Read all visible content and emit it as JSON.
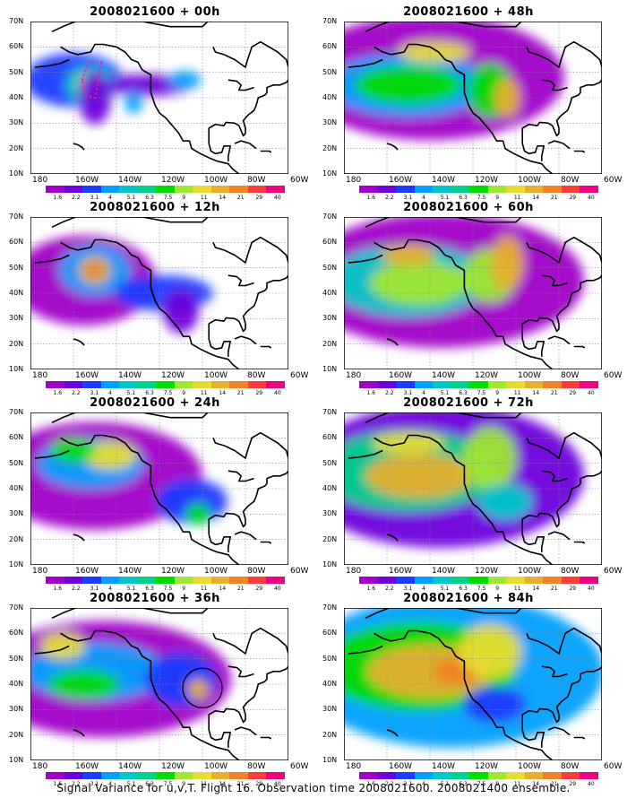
{
  "panels": [
    {
      "title": "2008021600 + 00h"
    },
    {
      "title": "2008021600 + 48h"
    },
    {
      "title": "2008021600 + 12h"
    },
    {
      "title": "2008021600 + 60h"
    },
    {
      "title": "2008021600 + 24h"
    },
    {
      "title": "2008021600 + 72h"
    },
    {
      "title": "2008021600 + 36h"
    },
    {
      "title": "2008021600 + 84h"
    }
  ],
  "axes": {
    "lat_labels": [
      "70N",
      "60N",
      "50N",
      "40N",
      "30N",
      "20N",
      "10N"
    ],
    "lon_labels": [
      "180",
      "160W",
      "140W",
      "120W",
      "100W",
      "80W",
      "60W"
    ]
  },
  "colorbar": {
    "colors": [
      "#a000c8",
      "#6e00dc",
      "#1e3cff",
      "#00a0ff",
      "#00c8c8",
      "#00d28c",
      "#00dc00",
      "#a0e632",
      "#e6dc32",
      "#e6af2d",
      "#f08228",
      "#fa3c3c",
      "#f00082"
    ],
    "labels": [
      "1.6",
      "2.2",
      "3.1",
      "4",
      "5.1",
      "6.3",
      "7.5",
      "9",
      "11",
      "14",
      "21",
      "29",
      "40"
    ]
  },
  "footer": "Signal Variance for u,v,T. Flight 16. Observation time 2008021600. 2008021400 ensemble."
}
